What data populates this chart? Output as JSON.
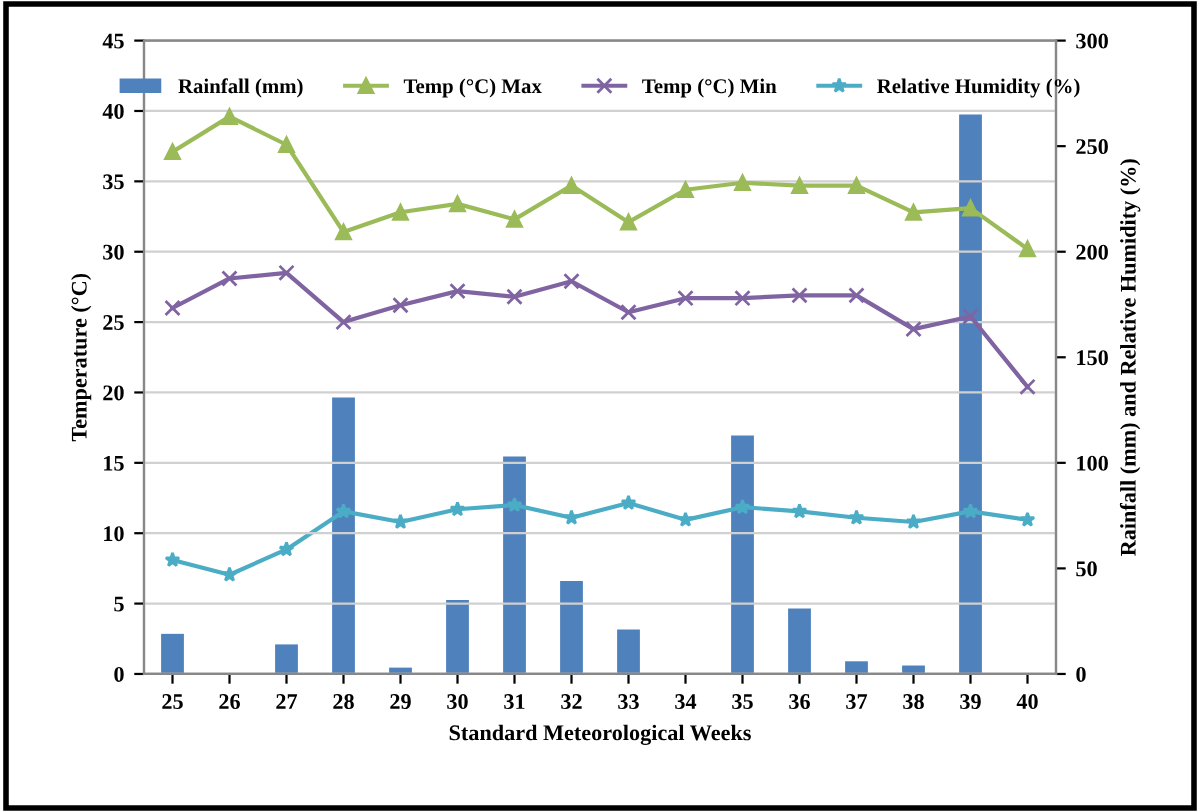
{
  "chart_data": {
    "type": "bar",
    "xlabel": "Standard Meteorological Weeks",
    "ylabel": "Temperature (°C)",
    "y2label": "Rainfall (mm) and Relative Humidity (%)",
    "categories": [
      "25",
      "26",
      "27",
      "28",
      "29",
      "30",
      "31",
      "32",
      "33",
      "34",
      "35",
      "36",
      "37",
      "38",
      "39",
      "40"
    ],
    "series": [
      {
        "name": "Rainfall (mm)",
        "axis": "y2",
        "color": "#4f81bd",
        "values": [
          19,
          0,
          14,
          131,
          3,
          35,
          103,
          44,
          21,
          0,
          113,
          31,
          6,
          4,
          265,
          0
        ]
      },
      {
        "name": "Temp (°C) Max",
        "type": "line",
        "color": "#9bbb59",
        "marker": "triangle",
        "values": [
          37.1,
          39.6,
          37.6,
          31.4,
          32.8,
          33.4,
          32.3,
          34.7,
          32.1,
          34.4,
          34.9,
          34.7,
          34.7,
          32.8,
          33.1,
          30.2
        ]
      },
      {
        "name": "Temp (°C) Min",
        "type": "line",
        "color": "#8064a2",
        "marker": "cross",
        "values": [
          26.0,
          28.1,
          28.5,
          25.0,
          26.2,
          27.2,
          26.8,
          27.9,
          25.7,
          26.7,
          26.7,
          26.9,
          26.9,
          24.5,
          25.4,
          20.4
        ]
      },
      {
        "name": "Relative Humidity (%)",
        "type": "line",
        "axis": "y2",
        "color": "#4bacc6",
        "marker": "star",
        "values": [
          54,
          47,
          59,
          77,
          72,
          78,
          80,
          74,
          81,
          73,
          79,
          77,
          74,
          72,
          77,
          73
        ]
      }
    ],
    "ylim": [
      0,
      45
    ],
    "yticks": [
      0,
      5,
      10,
      15,
      20,
      25,
      30,
      35,
      40,
      45
    ],
    "y2lim": [
      0,
      300
    ],
    "y2ticks": [
      0,
      50,
      100,
      150,
      200,
      250,
      300
    ],
    "grid": "y",
    "legend": "top"
  }
}
